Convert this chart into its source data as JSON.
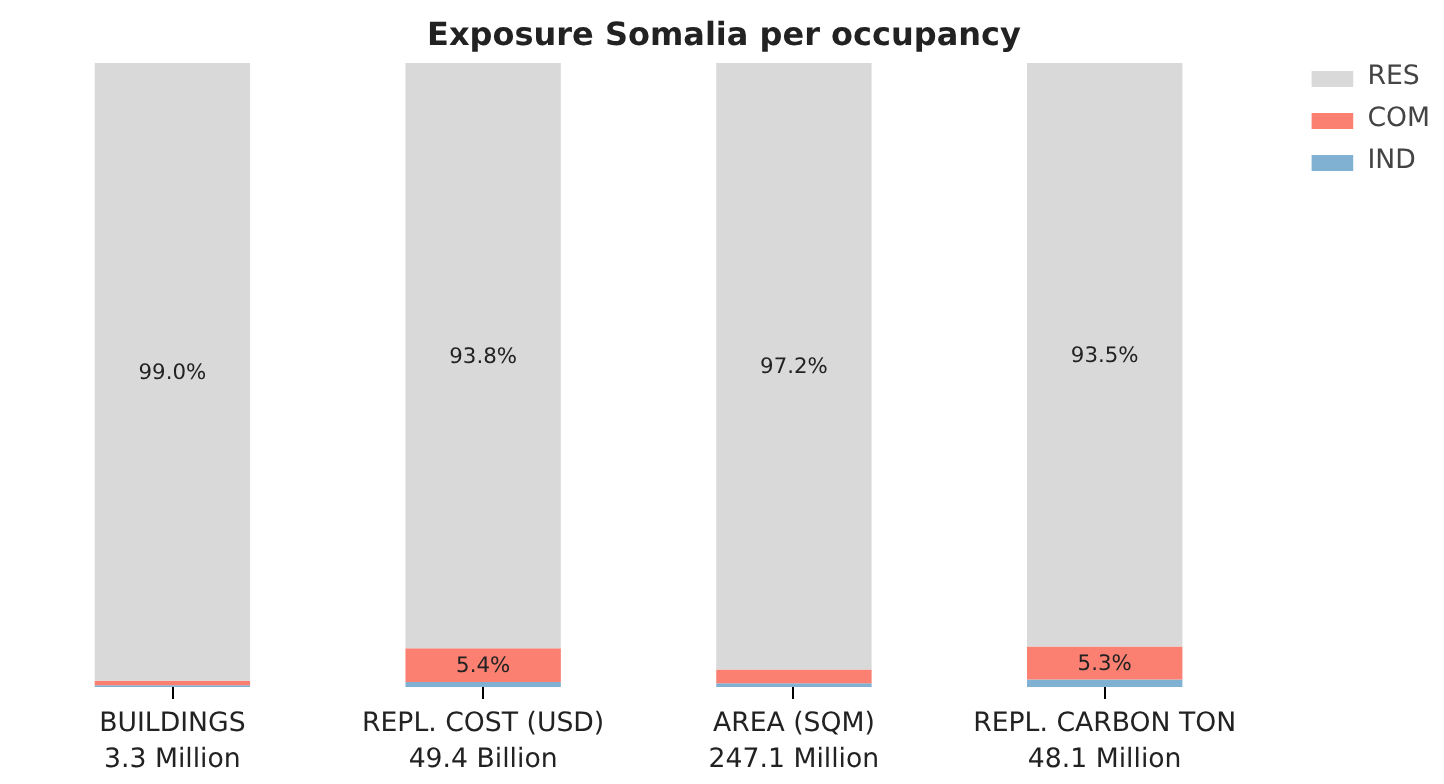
{
  "chart_data": {
    "type": "bar",
    "title": "Exposure Somalia per occupancy",
    "categories": [
      "BUILDINGS\n3.3 Million",
      "REPL. COST (USD)\n49.4 Billion",
      "AREA (SQM)\n247.1 Million",
      "REPL. CARBON TON\n48.1 Million"
    ],
    "stacked": true,
    "legend": "top right",
    "grid": false,
    "series": [
      {
        "name": "IND",
        "color": "#80b1d3",
        "values": [
          0.3,
          0.8,
          0.6,
          1.2
        ],
        "value_labels": [
          null,
          null,
          null,
          null
        ]
      },
      {
        "name": "COM",
        "color": "#fb8072",
        "values": [
          0.7,
          5.4,
          2.2,
          5.3
        ],
        "value_labels": [
          null,
          "5.4%",
          null,
          "5.3%"
        ]
      },
      {
        "name": "RES",
        "color": "#d9d9d9",
        "values": [
          99.0,
          93.8,
          97.2,
          93.5
        ],
        "value_labels": [
          "99.0%",
          "93.8%",
          "97.2%",
          "93.5%"
        ]
      }
    ]
  }
}
